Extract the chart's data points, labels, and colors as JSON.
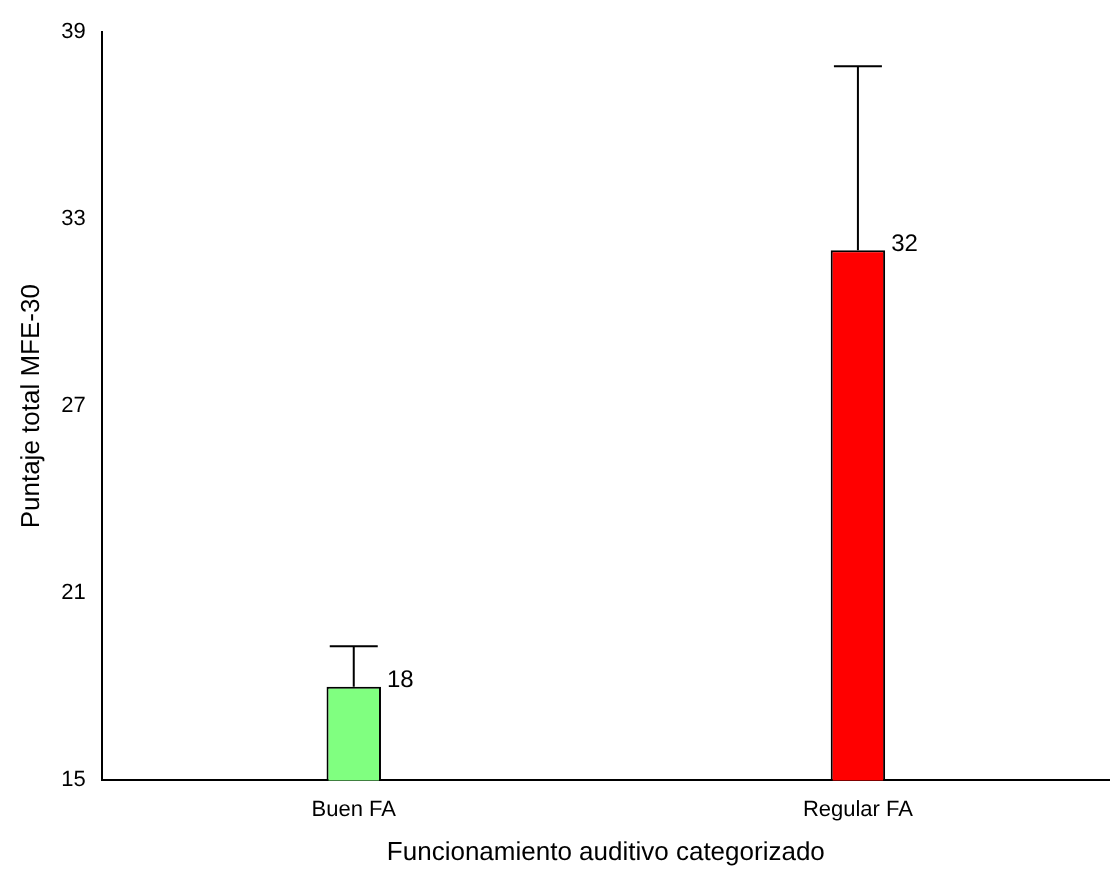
{
  "chart_data": {
    "type": "bar",
    "xlabel": "Funcionamiento auditivo categorizado",
    "ylabel": "Puntaje total MFE-30",
    "categories": [
      "Buen FA",
      "Regular FA"
    ],
    "values": [
      18,
      32
    ],
    "colors": [
      "#80ff80",
      "#ff0000"
    ],
    "errors": [
      [
        18,
        19.3
      ],
      [
        32,
        37.9
      ]
    ],
    "data_labels": true,
    "ylim": [
      15,
      39
    ],
    "yticks": [
      15,
      21,
      27,
      33,
      39
    ],
    "grid": false,
    "legend": false
  }
}
